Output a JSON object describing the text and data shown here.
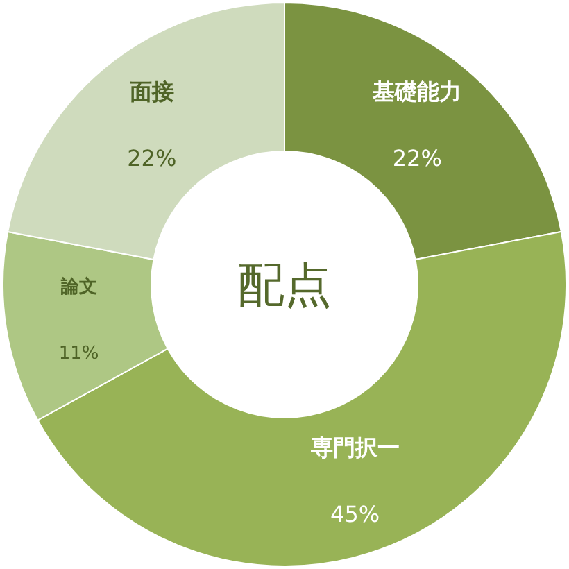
{
  "chart_data": {
    "type": "donut",
    "title": "配点",
    "categories": [
      "基礎能力",
      "専門択一",
      "論文",
      "面接"
    ],
    "values": [
      22,
      45,
      11,
      22
    ],
    "value_labels": [
      "22%",
      "45%",
      "11%",
      "22%"
    ],
    "colors": [
      "#7b9341",
      "#98b356",
      "#aec784",
      "#cfdbbd"
    ]
  }
}
